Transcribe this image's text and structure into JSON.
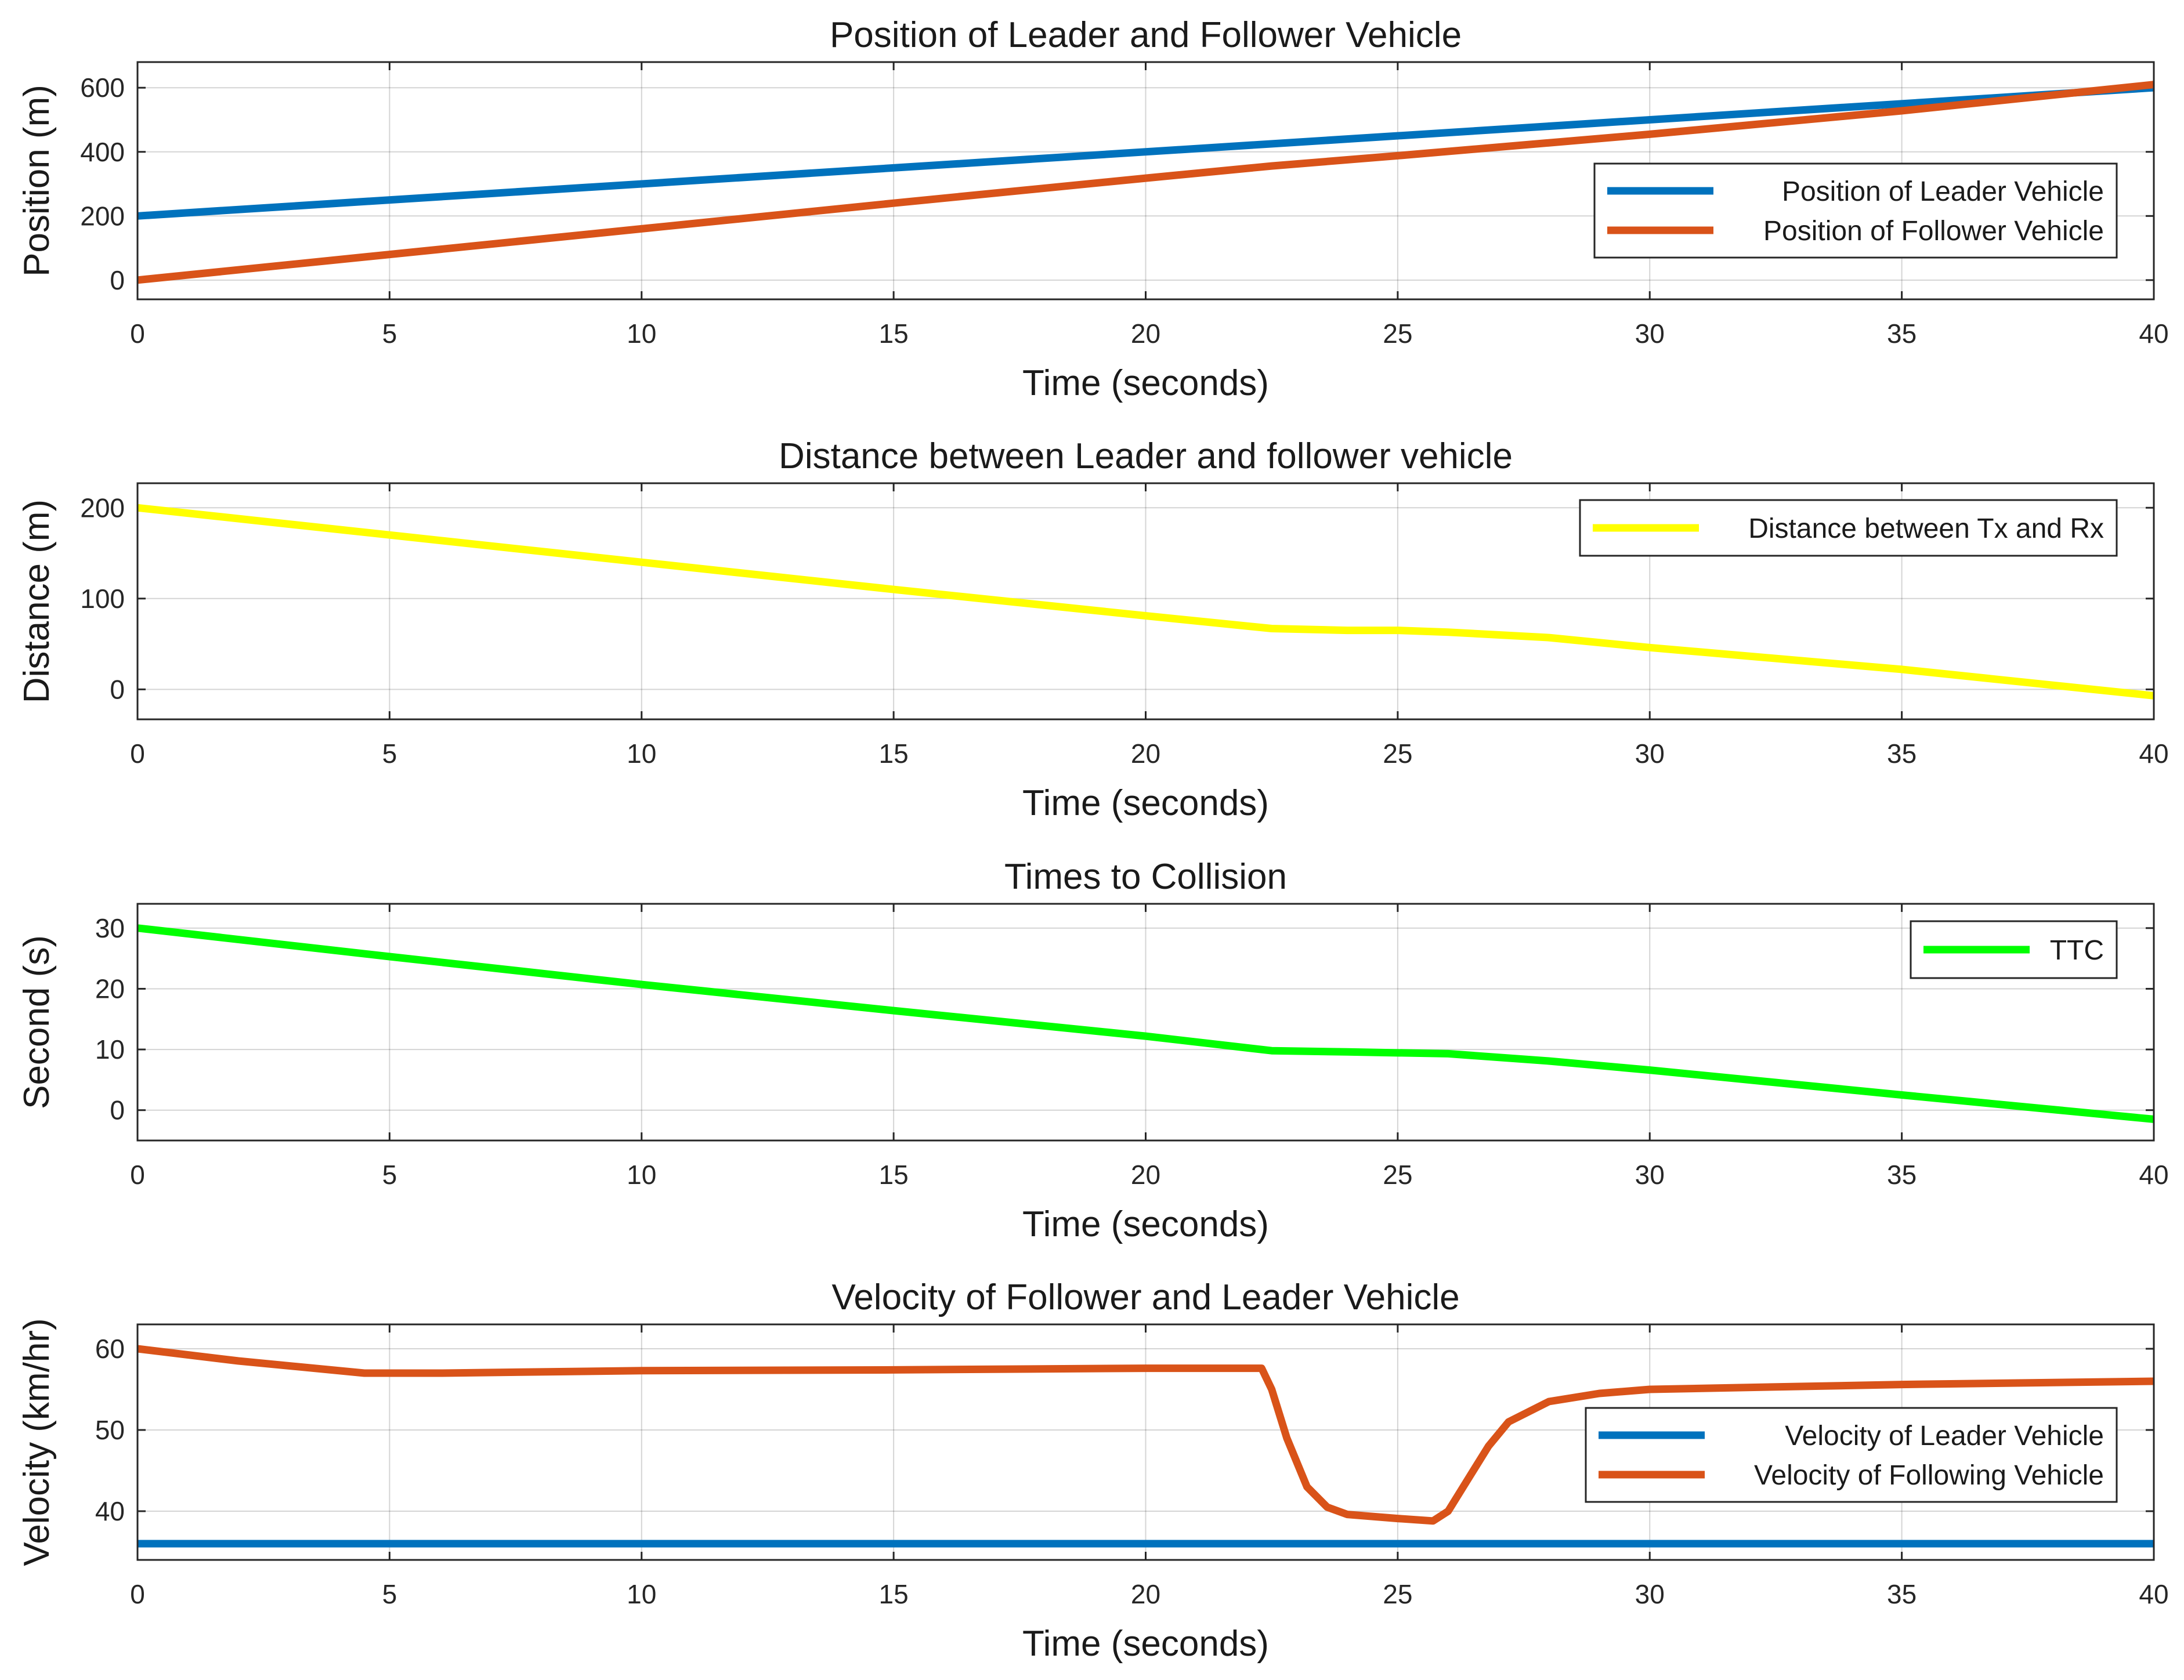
{
  "chart_data": [
    {
      "type": "line",
      "title": "Position of Leader and Follower Vehicle",
      "xlabel": "Time (seconds)",
      "ylabel": "Position (m)",
      "xlim": [
        0,
        40
      ],
      "ylim": [
        -60,
        680
      ],
      "xticks": [
        0,
        5,
        10,
        15,
        20,
        25,
        30,
        35,
        40
      ],
      "yticks": [
        0,
        200,
        400,
        600
      ],
      "grid": true,
      "legend_position": "right",
      "series": [
        {
          "name": "Position of Leader Vehicle",
          "color": "#0072BD",
          "x": [
            0,
            40
          ],
          "y": [
            200,
            600
          ]
        },
        {
          "name": "Position of Follower Vehicle",
          "color": "#D95319",
          "x": [
            0,
            5,
            10,
            15,
            20,
            22.5,
            25,
            30,
            35,
            40
          ],
          "y": [
            0,
            80,
            160,
            240,
            318,
            356,
            388,
            455,
            528,
            610
          ]
        }
      ]
    },
    {
      "type": "line",
      "title": "Distance between Leader and follower vehicle",
      "xlabel": "Time (seconds)",
      "ylabel": "Distance (m)",
      "xlim": [
        0,
        40
      ],
      "ylim": [
        -33,
        227
      ],
      "xticks": [
        0,
        5,
        10,
        15,
        20,
        25,
        30,
        35,
        40
      ],
      "yticks": [
        0,
        100,
        200
      ],
      "grid": true,
      "legend_position": "top-right",
      "series": [
        {
          "name": "Distance between Tx and Rx",
          "color": "#FFFF00",
          "x": [
            0,
            5,
            10,
            15,
            20,
            22.5,
            24,
            25,
            26,
            28,
            30,
            35,
            40
          ],
          "y": [
            200,
            170,
            140,
            110,
            81,
            67,
            65,
            65,
            63,
            57,
            46,
            22,
            -7
          ]
        }
      ]
    },
    {
      "type": "line",
      "title": "Times to Collision",
      "xlabel": "Time (seconds)",
      "ylabel": "Second (s)",
      "xlim": [
        0,
        40
      ],
      "ylim": [
        -5,
        34
      ],
      "xticks": [
        0,
        5,
        10,
        15,
        20,
        25,
        30,
        35,
        40
      ],
      "yticks": [
        0,
        10,
        20,
        30
      ],
      "grid": true,
      "legend_position": "top-right",
      "series": [
        {
          "name": "TTC",
          "color": "#00FF00",
          "x": [
            0,
            5,
            10,
            15,
            20,
            22.5,
            24,
            26,
            28,
            30,
            35,
            40
          ],
          "y": [
            30,
            25.3,
            20.7,
            16.4,
            12.2,
            9.8,
            9.6,
            9.3,
            8.1,
            6.6,
            2.5,
            -1.5
          ]
        }
      ]
    },
    {
      "type": "line",
      "title": "Velocity of Follower and Leader Vehicle",
      "xlabel": "Time (seconds)",
      "ylabel": "Velocity (km/hr)",
      "xlim": [
        0,
        40
      ],
      "ylim": [
        34,
        63
      ],
      "xticks": [
        0,
        5,
        10,
        15,
        20,
        25,
        30,
        35,
        40
      ],
      "yticks": [
        40,
        50,
        60
      ],
      "grid": true,
      "legend_position": "right",
      "series": [
        {
          "name": "Velocity of Leader Vehicle",
          "color": "#0072BD",
          "x": [
            0,
            40
          ],
          "y": [
            36,
            36
          ]
        },
        {
          "name": "Velocity of Following Vehicle",
          "color": "#D95319",
          "x": [
            0,
            2,
            4.5,
            6,
            10,
            15,
            20,
            22.3,
            22.5,
            22.8,
            23.2,
            23.6,
            24,
            25,
            25.7,
            26,
            26.4,
            26.8,
            27.2,
            28,
            29,
            30,
            35,
            40
          ],
          "y": [
            60,
            58.5,
            57,
            57,
            57.3,
            57.4,
            57.6,
            57.6,
            55,
            49,
            43,
            40.5,
            39.6,
            39.1,
            38.8,
            40,
            44,
            48,
            51,
            53.5,
            54.5,
            55,
            55.6,
            56
          ]
        }
      ]
    }
  ]
}
